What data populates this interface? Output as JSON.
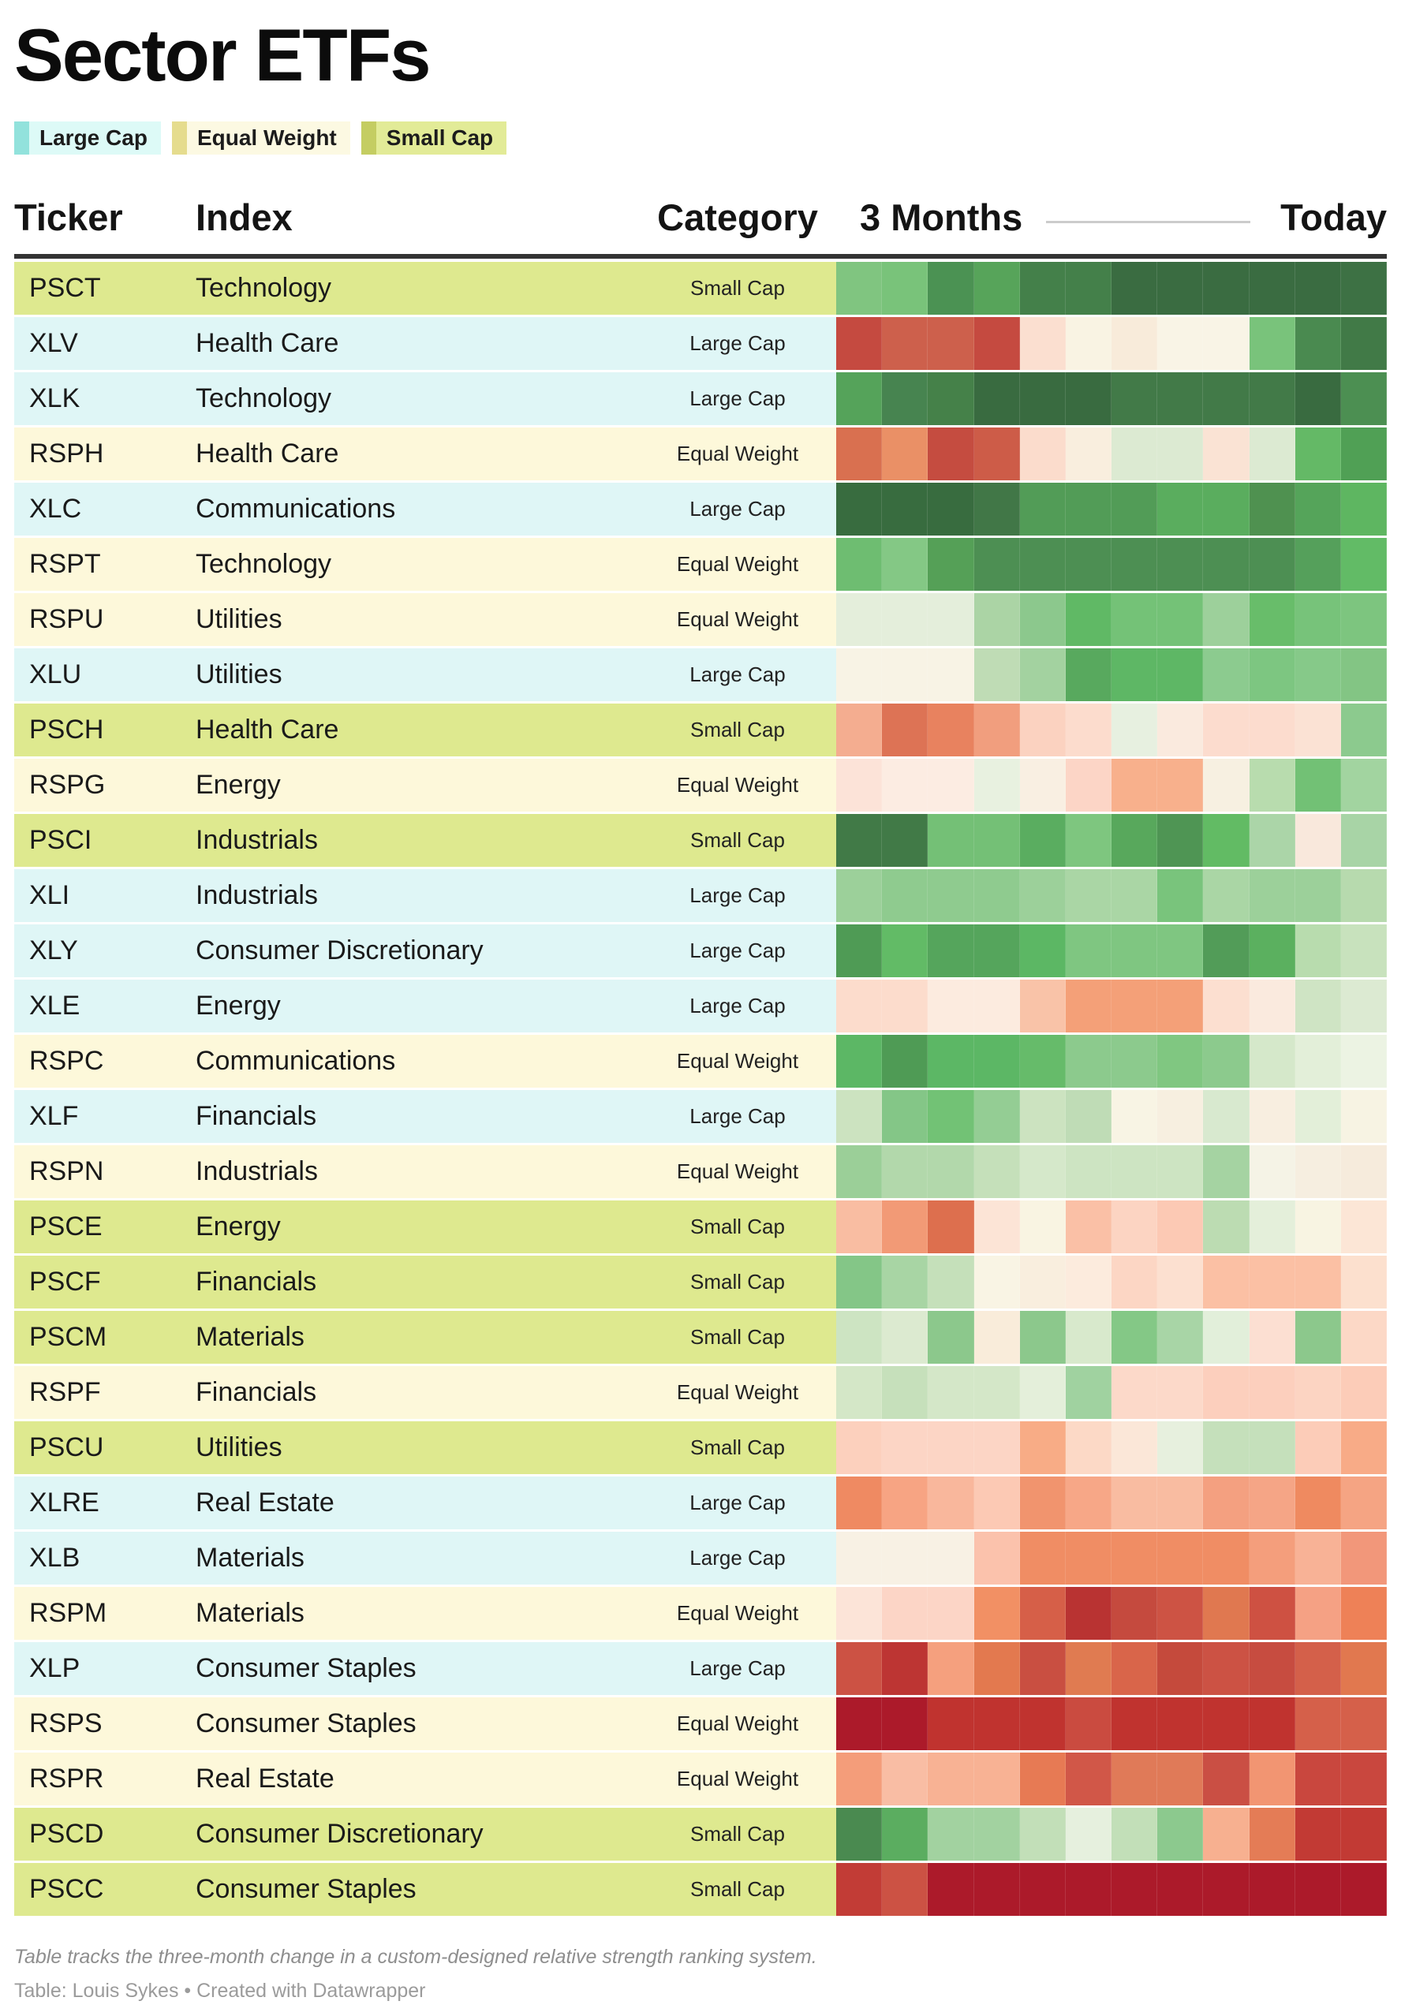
{
  "title": "Sector ETFs",
  "legend": [
    {
      "label": "Large Cap",
      "bar": "#92e2dc",
      "bg": "#ddfaf7"
    },
    {
      "label": "Equal Weight",
      "bar": "#e5dc8e",
      "bg": "#fcf9e2"
    },
    {
      "label": "Small Cap",
      "bar": "#c4cd62",
      "bg": "#e2eb97"
    }
  ],
  "columns": {
    "ticker": "Ticker",
    "index": "Index",
    "category": "Category",
    "timeline_start": "3 Months",
    "timeline_end": "Today"
  },
  "category_colors": {
    "Large Cap": "#dff6f6",
    "Equal Weight": "#fdf8da",
    "Small Cap": "#dee98f"
  },
  "footnote": "Table tracks the three-month change in a custom-designed relative strength ranking system.",
  "credit": "Table: Louis Sykes • Created with Datawrapper",
  "chart_data": {
    "type": "heatmap",
    "title": "Sector ETFs",
    "x_start_label": "3 Months",
    "x_end_label": "Today",
    "n_periods": 12,
    "legend_position": "top",
    "color_meaning": "green = strong/improving relative strength ranking, red = weak/deteriorating; colors are the data values shown",
    "rows": [
      {
        "ticker": "PSCT",
        "index": "Technology",
        "category": "Small Cap",
        "colors": [
          "#80c580",
          "#79c37a",
          "#4b9253",
          "#57a45a",
          "#44804a",
          "#44804a",
          "#3a6c41",
          "#3a6c41",
          "#3a6c41",
          "#3a6c41",
          "#3a6c41",
          "#3d7144"
        ]
      },
      {
        "ticker": "XLV",
        "index": "Health Care",
        "category": "Large Cap",
        "colors": [
          "#c54a40",
          "#cd604c",
          "#cd604c",
          "#c54a40",
          "#fbdfd0",
          "#f9f3e3",
          "#f8ebda",
          "#f9f4e6",
          "#f9f4e6",
          "#79c37b",
          "#4a8a50",
          "#417a47"
        ]
      },
      {
        "ticker": "XLK",
        "index": "Technology",
        "category": "Large Cap",
        "colors": [
          "#55a35a",
          "#478450",
          "#458149",
          "#396b40",
          "#396b40",
          "#396b40",
          "#427a48",
          "#427a48",
          "#427a48",
          "#427a48",
          "#396b40",
          "#4c8f52"
        ]
      },
      {
        "ticker": "RSPH",
        "index": "Health Care",
        "category": "Equal Weight",
        "colors": [
          "#d97050",
          "#ea9066",
          "#c54c40",
          "#cd5c48",
          "#fbdccc",
          "#f9eede",
          "#dcead2",
          "#dcead2",
          "#fae3d4",
          "#dcead2",
          "#64b966",
          "#50a055"
        ]
      },
      {
        "ticker": "XLC",
        "index": "Communications",
        "category": "Large Cap",
        "colors": [
          "#386c3f",
          "#386c3f",
          "#386c3f",
          "#417747",
          "#529c57",
          "#529c57",
          "#529c57",
          "#5aad5e",
          "#5aad5e",
          "#4f9150",
          "#55a45a",
          "#5eb661"
        ]
      },
      {
        "ticker": "RSPT",
        "index": "Technology",
        "category": "Equal Weight",
        "colors": [
          "#6ebd71",
          "#84c885",
          "#55a057",
          "#4d8f53",
          "#4d8f53",
          "#4d8f53",
          "#4d8f53",
          "#4d8f53",
          "#4d8f53",
          "#4d8f53",
          "#55a05b",
          "#62bb66"
        ]
      },
      {
        "ticker": "RSPU",
        "index": "Utilities",
        "category": "Equal Weight",
        "colors": [
          "#e4eedb",
          "#e4eedb",
          "#e4eedb",
          "#abd4a5",
          "#8cc88d",
          "#60b965",
          "#74c277",
          "#74c277",
          "#9dd09b",
          "#68bd6a",
          "#77c37a",
          "#7dc57f"
        ]
      },
      {
        "ticker": "XLU",
        "index": "Utilities",
        "category": "Large Cap",
        "colors": [
          "#f8f3e5",
          "#f8f3e5",
          "#f8f3e5",
          "#bfdcb5",
          "#a3d2a0",
          "#58a95e",
          "#5eb765",
          "#5eb765",
          "#8ccb8f",
          "#7dc681",
          "#86c989",
          "#83c584"
        ]
      },
      {
        "ticker": "PSCH",
        "index": "Health Care",
        "category": "Small Cap",
        "colors": [
          "#f4ad90",
          "#dd7355",
          "#e8825f",
          "#f19e7e",
          "#fbd2c0",
          "#fcdccd",
          "#e7f0e0",
          "#faeade",
          "#fcdcce",
          "#fcdcce",
          "#fbe2d4",
          "#8cca8e"
        ]
      },
      {
        "ticker": "RSPG",
        "index": "Energy",
        "category": "Equal Weight",
        "colors": [
          "#fce3d8",
          "#fcece2",
          "#fcece2",
          "#e8f1e0",
          "#f9efe2",
          "#fcd5c6",
          "#f8b08c",
          "#f8b08c",
          "#f7f0e1",
          "#b8dcae",
          "#72c175",
          "#a2d4a0"
        ]
      },
      {
        "ticker": "PSCI",
        "index": "Industrials",
        "category": "Small Cap",
        "colors": [
          "#417a47",
          "#417a47",
          "#74c076",
          "#74c076",
          "#5aad60",
          "#7ec67f",
          "#58a85c",
          "#4f9554",
          "#62bb64",
          "#abd5a8",
          "#f9e8dc",
          "#a8d4a6"
        ]
      },
      {
        "ticker": "XLI",
        "index": "Industrials",
        "category": "Large Cap",
        "colors": [
          "#9cd09a",
          "#8fcb8f",
          "#8fcb8f",
          "#8fcb8f",
          "#9cd09a",
          "#aad6a5",
          "#aad6a5",
          "#79c47c",
          "#aad6a5",
          "#9cd09a",
          "#9cd09a",
          "#b7daae"
        ]
      },
      {
        "ticker": "XLY",
        "index": "Consumer Discretionary",
        "category": "Large Cap",
        "colors": [
          "#4f9b55",
          "#62bb66",
          "#55a55c",
          "#55a55c",
          "#5cb764",
          "#7fc681",
          "#7fc681",
          "#7fc681",
          "#529c58",
          "#5bb05f",
          "#b8dcae",
          "#c8e2bd"
        ]
      },
      {
        "ticker": "XLE",
        "index": "Energy",
        "category": "Large Cap",
        "colors": [
          "#fcdccc",
          "#fcdccc",
          "#fcebdf",
          "#fcebdf",
          "#f9c3a8",
          "#f4a078",
          "#f4a078",
          "#f4a078",
          "#fcdfd0",
          "#faeade",
          "#cfe4c4",
          "#dcead2"
        ]
      },
      {
        "ticker": "RSPC",
        "index": "Communications",
        "category": "Equal Weight",
        "colors": [
          "#5cb765",
          "#4f9b55",
          "#5cb765",
          "#5cb765",
          "#66bb6a",
          "#8cca8d",
          "#8cca8d",
          "#80c781",
          "#8cca8d",
          "#d5e8ca",
          "#e3efd9",
          "#ecf3e3"
        ]
      },
      {
        "ticker": "XLF",
        "index": "Financials",
        "category": "Large Cap",
        "colors": [
          "#cce3c0",
          "#84c687",
          "#72c275",
          "#94cd94",
          "#cce3c0",
          "#bfdcb6",
          "#f8f4e4",
          "#f7efe0",
          "#d8e9cf",
          "#f8eee0",
          "#e3efd9",
          "#f7f3e3"
        ]
      },
      {
        "ticker": "RSPN",
        "index": "Industrials",
        "category": "Equal Weight",
        "colors": [
          "#9bcf98",
          "#b2d8ab",
          "#b2d8ab",
          "#c5e0ba",
          "#d5e8ca",
          "#cde4c2",
          "#cde4c2",
          "#cde4c2",
          "#a5d3a2",
          "#f5f3e6",
          "#f6eee0",
          "#f6ebdc"
        ]
      },
      {
        "ticker": "PSCE",
        "index": "Energy",
        "category": "Small Cap",
        "colors": [
          "#f9bda2",
          "#f29a76",
          "#dd6f4e",
          "#fce4d6",
          "#f9f4e2",
          "#fac0a6",
          "#fcd4c2",
          "#fcc9b4",
          "#bcdcb2",
          "#e4efda",
          "#f8f4e2",
          "#fce6d6"
        ]
      },
      {
        "ticker": "PSCF",
        "index": "Financials",
        "category": "Small Cap",
        "colors": [
          "#84c687",
          "#a8d5a4",
          "#c5e0ba",
          "#f9f4e4",
          "#f9eede",
          "#fcebdd",
          "#fcd6c4",
          "#fce0d0",
          "#fbc0a4",
          "#fbc0a4",
          "#fbc0a4",
          "#fce0ce"
        ]
      },
      {
        "ticker": "PSCM",
        "index": "Materials",
        "category": "Small Cap",
        "colors": [
          "#cde4c2",
          "#dcead0",
          "#8cc88c",
          "#f9ecda",
          "#8cc88c",
          "#d8e9cc",
          "#84c886",
          "#a8d5a6",
          "#e2efda",
          "#fcdfd2",
          "#8cc88c",
          "#fcd8c6"
        ]
      },
      {
        "ticker": "RSPF",
        "index": "Financials",
        "category": "Equal Weight",
        "colors": [
          "#d4e7c7",
          "#c6e0bb",
          "#d4e7c8",
          "#d4e7c8",
          "#e4efda",
          "#a0d2a0",
          "#fcd9c9",
          "#fcd9c9",
          "#fccfbd",
          "#fccfbd",
          "#fcd4c2",
          "#fcccb8"
        ]
      },
      {
        "ticker": "PSCU",
        "index": "Utilities",
        "category": "Small Cap",
        "colors": [
          "#fcd0bd",
          "#fcd5c5",
          "#fcd5c5",
          "#fcd5c5",
          "#f8ac86",
          "#fcd9c6",
          "#fbe7d8",
          "#e7f0de",
          "#c5e0bb",
          "#c5e0bb",
          "#fcccb8",
          "#f8ab87"
        ]
      },
      {
        "ticker": "XLRE",
        "index": "Real Estate",
        "category": "Large Cap",
        "colors": [
          "#ef8a62",
          "#f7a483",
          "#f9b79c",
          "#fcc9b4",
          "#f1946e",
          "#f7a787",
          "#f9bca1",
          "#f9bca1",
          "#f4a080",
          "#f5a586",
          "#ef8a60",
          "#f5a483"
        ]
      },
      {
        "ticker": "XLB",
        "index": "Materials",
        "category": "Large Cap",
        "colors": [
          "#f8f1e4",
          "#f8f1e4",
          "#f8f1e4",
          "#fbc2ac",
          "#f08d64",
          "#f08d64",
          "#f08d64",
          "#f08d64",
          "#f08d64",
          "#f49e7c",
          "#f8b296",
          "#f2977a"
        ]
      },
      {
        "ticker": "RSPM",
        "index": "Materials",
        "category": "Equal Weight",
        "colors": [
          "#fce4d8",
          "#fcd5c6",
          "#fcd5c6",
          "#f29064",
          "#d65f48",
          "#b93332",
          "#c54a3e",
          "#cd5344",
          "#e07850",
          "#ce5142",
          "#f5a184",
          "#ee8157"
        ]
      },
      {
        "ticker": "XLP",
        "index": "Consumer Staples",
        "category": "Large Cap",
        "colors": [
          "#cc5244",
          "#bd3533",
          "#f5a07e",
          "#e3794f",
          "#c94f41",
          "#e07b51",
          "#d9654a",
          "#c54a3c",
          "#cc5244",
          "#c74c40",
          "#d4604a",
          "#e1784f"
        ]
      },
      {
        "ticker": "RSPS",
        "index": "Consumer Staples",
        "category": "Equal Weight",
        "colors": [
          "#ac1a2a",
          "#ac1a2a",
          "#c0332f",
          "#c0332f",
          "#c0332f",
          "#ca4b40",
          "#c0332f",
          "#c0332f",
          "#c0332f",
          "#c0332f",
          "#d5604a",
          "#d5604a"
        ]
      },
      {
        "ticker": "RSPR",
        "index": "Real Estate",
        "category": "Equal Weight",
        "colors": [
          "#f49d7a",
          "#f9bda4",
          "#f8b294",
          "#f8b294",
          "#e77a54",
          "#d15748",
          "#e07a58",
          "#e07a58",
          "#ca4f44",
          "#f29572",
          "#c9473e",
          "#c9473e"
        ]
      },
      {
        "ticker": "PSCD",
        "index": "Consumer Discretionary",
        "category": "Small Cap",
        "colors": [
          "#4a8a50",
          "#5bad60",
          "#a2d2a0",
          "#a2d2a0",
          "#c2dfb8",
          "#e6f0de",
          "#c2dfb8",
          "#8cc98e",
          "#f7b090",
          "#e47c56",
          "#c23a34",
          "#c23a34"
        ]
      },
      {
        "ticker": "PSCC",
        "index": "Consumer Staples",
        "category": "Small Cap",
        "colors": [
          "#c23c36",
          "#cc5244",
          "#ac1a2a",
          "#ac1a2a",
          "#ac1a2a",
          "#ac1a2a",
          "#ac1a2a",
          "#ac1a2a",
          "#ac1a2a",
          "#ac1a2a",
          "#ac1a2a",
          "#ac1a2a"
        ]
      }
    ]
  }
}
